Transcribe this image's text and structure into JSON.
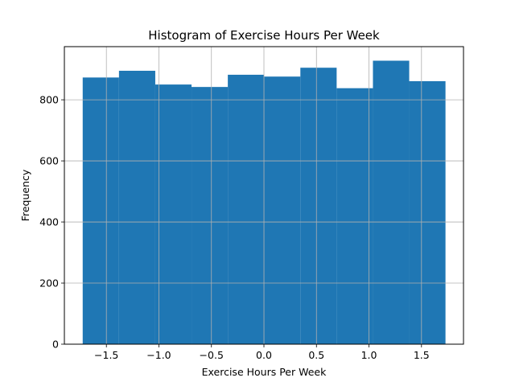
{
  "chart_data": {
    "type": "bar",
    "title": "Histogram of Exercise Hours Per Week",
    "xlabel": "Exercise Hours Per Week",
    "ylabel": "Frequency",
    "bin_edges": [
      -1.7255,
      -1.3801,
      -1.0347,
      -0.6893,
      -0.3439,
      0.0015,
      0.3469,
      0.6923,
      1.0377,
      1.3831,
      1.7285
    ],
    "values": [
      873,
      895,
      850,
      842,
      882,
      876,
      905,
      838,
      928,
      861
    ],
    "xlim": [
      -1.9,
      1.9
    ],
    "ylim": [
      0,
      974
    ],
    "xticks": [
      -1.5,
      -1.0,
      -0.5,
      0.0,
      0.5,
      1.0,
      1.5
    ],
    "xtick_labels": [
      "−1.5",
      "−1.0",
      "−0.5",
      "0.0",
      "0.5",
      "1.0",
      "1.5"
    ],
    "yticks": [
      0,
      200,
      400,
      600,
      800
    ],
    "ytick_labels": [
      "0",
      "200",
      "400",
      "600",
      "800"
    ],
    "grid": true,
    "bar_color": "#1f77b4",
    "grid_color": "#b0b0b0"
  }
}
